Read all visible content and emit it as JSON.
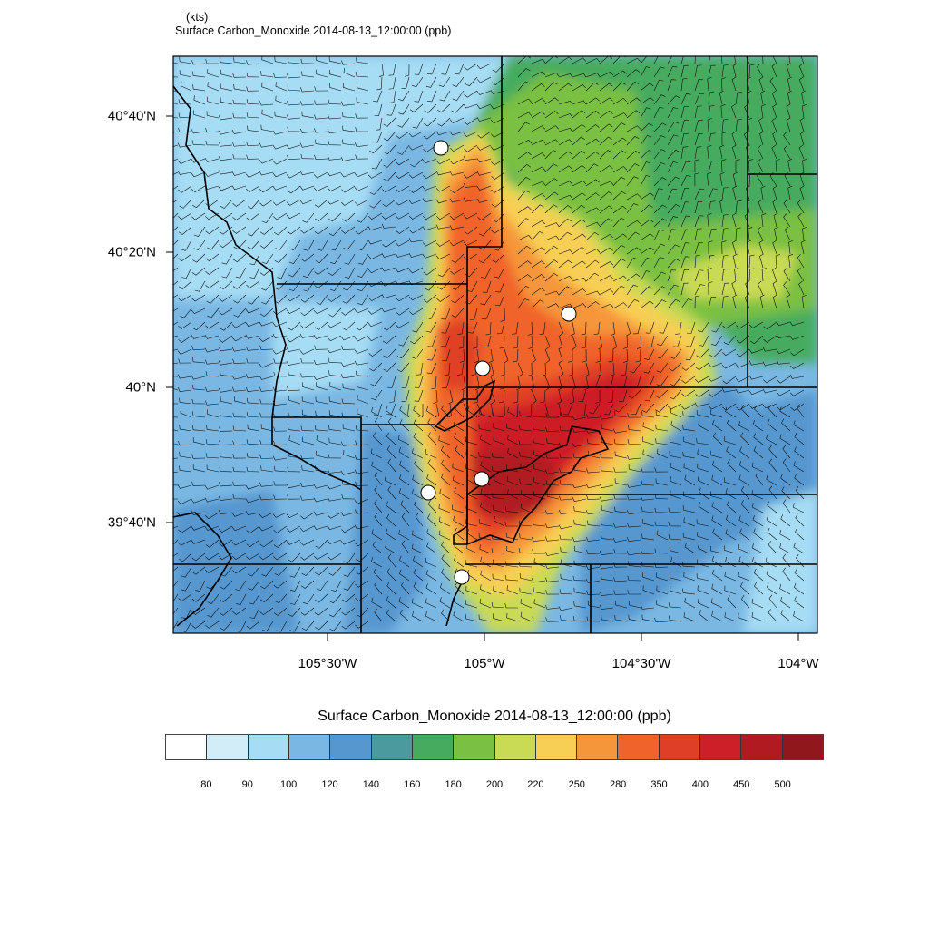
{
  "header": {
    "units": "(kts)",
    "title": "Surface Carbon_Monoxide   2014-08-13_12:00:00   (ppb)"
  },
  "axes": {
    "lat_labels": [
      "40°40'N",
      "40°20'N",
      "40°N",
      "39°40'N"
    ],
    "lon_labels": [
      "105°30'W",
      "105°W",
      "104°30'W",
      "104°W"
    ]
  },
  "chart_data": {
    "type": "heatmap",
    "title": "Surface Carbon_Monoxide   2014-08-13_12:00:00   (ppb)",
    "variable": "Surface Carbon_Monoxide",
    "time": "2014-08-13_12:00:00",
    "units": "ppb",
    "overlay": "wind barbs (kts)",
    "lat_ticks": [
      "40°40'N",
      "40°20'N",
      "40°N",
      "39°40'N"
    ],
    "lon_ticks": [
      "105°30'W",
      "105°W",
      "104°30'W",
      "104°W"
    ],
    "colorbar": {
      "title": "Surface Carbon_Monoxide   2014-08-13_12:00:00  (ppb)",
      "levels": [
        "80",
        "90",
        "100",
        "120",
        "140",
        "160",
        "180",
        "200",
        "220",
        "250",
        "280",
        "350",
        "400",
        "450",
        "500"
      ],
      "colors": [
        "#ffffff",
        "#d2ecf8",
        "#a6dcf4",
        "#7ab8e3",
        "#5797cf",
        "#4a9a9e",
        "#46ab5f",
        "#7ac043",
        "#c9da55",
        "#f8cf55",
        "#f6963a",
        "#f0632a",
        "#e03f27",
        "#cd1f28",
        "#b11a21",
        "#90171c"
      ]
    }
  }
}
